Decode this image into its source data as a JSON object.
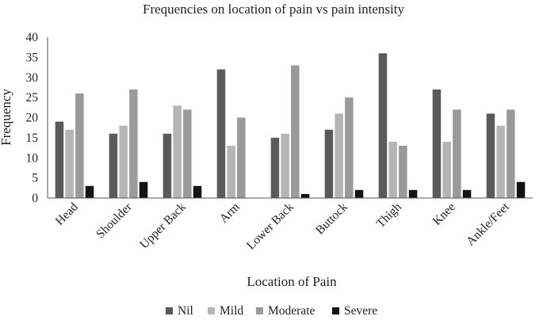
{
  "chart_data": {
    "type": "bar",
    "title": "Frequencies on location of pain vs pain intensity",
    "xlabel": "Location of Pain",
    "ylabel": "Frequency",
    "ylim": [
      0,
      40
    ],
    "yticks": [
      "0",
      "5",
      "10",
      "15",
      "20",
      "25",
      "30",
      "35",
      "40"
    ],
    "grid": false,
    "legend_position": "bottom",
    "categories": [
      "Head",
      "Shoulder",
      "Upper Back",
      "Arm",
      "Lower Back",
      "Buttock",
      "Thigh",
      "Knee",
      "Ankle/Feet"
    ],
    "series": [
      {
        "name": "Nil",
        "color": "#5a5a5a",
        "values": [
          19,
          16,
          16,
          32,
          15,
          17,
          36,
          27,
          21
        ]
      },
      {
        "name": "Mild",
        "color": "#b5b5b5",
        "values": [
          17,
          18,
          23,
          13,
          16,
          21,
          14,
          14,
          18
        ]
      },
      {
        "name": "Moderate",
        "color": "#9a9a9a",
        "values": [
          26,
          27,
          22,
          20,
          33,
          25,
          13,
          22,
          22
        ]
      },
      {
        "name": "Severe",
        "color": "#141414",
        "values": [
          3,
          4,
          3,
          0,
          1,
          2,
          2,
          2,
          4
        ]
      }
    ]
  }
}
